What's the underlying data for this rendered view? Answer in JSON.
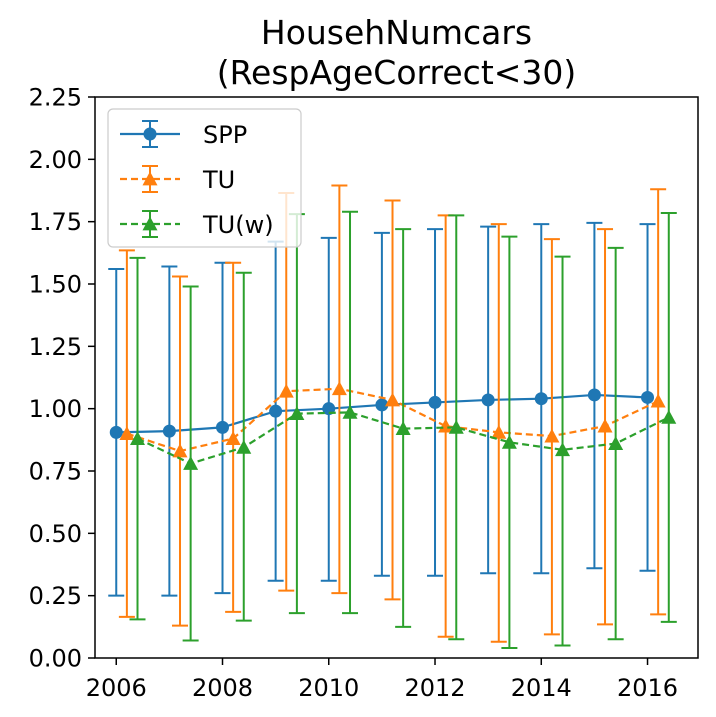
{
  "chart_data": {
    "type": "line",
    "title_lines": [
      "HousehNumcars",
      "(RespAgeCorrect<30)"
    ],
    "xlabel": "",
    "ylabel": "",
    "xlim": [
      2005.6,
      2016.95
    ],
    "ylim": [
      0.0,
      2.25
    ],
    "x_ticks": [
      2006,
      2008,
      2010,
      2012,
      2014,
      2016
    ],
    "x_tick_labels": [
      "2006",
      "2008",
      "2010",
      "2012",
      "2014",
      "2016"
    ],
    "y_ticks": [
      0.0,
      0.25,
      0.5,
      0.75,
      1.0,
      1.25,
      1.5,
      1.75,
      2.0,
      2.25
    ],
    "y_tick_labels": [
      "0.00",
      "0.25",
      "0.50",
      "0.75",
      "1.00",
      "1.25",
      "1.50",
      "1.75",
      "2.00",
      "2.25"
    ],
    "grid": false,
    "legend_position": "top-left",
    "series": [
      {
        "name": "SPP",
        "color": "#1f77b4",
        "line_style": "solid",
        "marker": "circle",
        "x": [
          2006,
          2007,
          2008,
          2009,
          2010,
          2011,
          2012,
          2013,
          2014,
          2015,
          2016
        ],
        "y": [
          0.905,
          0.91,
          0.925,
          0.99,
          1.0,
          1.015,
          1.025,
          1.035,
          1.04,
          1.055,
          1.045
        ],
        "err_low": [
          0.25,
          0.25,
          0.26,
          0.31,
          0.31,
          0.33,
          0.33,
          0.34,
          0.34,
          0.36,
          0.35
        ],
        "err_high": [
          1.56,
          1.57,
          1.585,
          1.67,
          1.685,
          1.705,
          1.72,
          1.73,
          1.74,
          1.745,
          1.74
        ]
      },
      {
        "name": "TU",
        "color": "#ff7f0e",
        "line_style": "dashed",
        "marker": "triangle",
        "x": [
          2006.2,
          2007.2,
          2008.2,
          2009.2,
          2010.2,
          2011.2,
          2012.2,
          2013.2,
          2014.2,
          2015.2,
          2016.2
        ],
        "y": [
          0.9,
          0.83,
          0.88,
          1.07,
          1.08,
          1.035,
          0.93,
          0.905,
          0.89,
          0.93,
          1.03
        ],
        "err_low": [
          0.165,
          0.13,
          0.185,
          0.27,
          0.26,
          0.235,
          0.085,
          0.065,
          0.095,
          0.135,
          0.175
        ],
        "err_high": [
          1.635,
          1.53,
          1.585,
          1.865,
          1.895,
          1.835,
          1.775,
          1.74,
          1.68,
          1.72,
          1.88
        ]
      },
      {
        "name": "TU(w)",
        "color": "#2ca02c",
        "line_style": "dashed",
        "marker": "triangle",
        "x": [
          2006.4,
          2007.4,
          2008.4,
          2009.4,
          2010.4,
          2011.4,
          2012.4,
          2013.4,
          2014.4,
          2015.4,
          2016.4
        ],
        "y": [
          0.88,
          0.78,
          0.845,
          0.98,
          0.985,
          0.92,
          0.925,
          0.865,
          0.835,
          0.86,
          0.965
        ],
        "err_low": [
          0.155,
          0.07,
          0.15,
          0.18,
          0.18,
          0.125,
          0.075,
          0.04,
          0.05,
          0.075,
          0.145
        ],
        "err_high": [
          1.605,
          1.49,
          1.545,
          1.78,
          1.79,
          1.72,
          1.775,
          1.69,
          1.61,
          1.645,
          1.785
        ]
      }
    ]
  }
}
